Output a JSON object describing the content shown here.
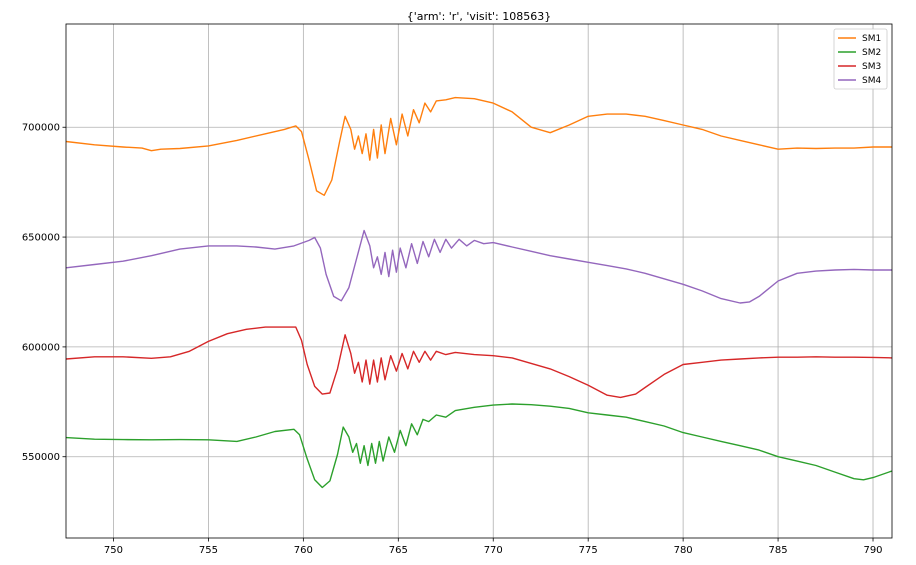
{
  "chart_data": {
    "type": "line",
    "title": "{'arm': 'r', 'visit': 108563}",
    "xlabel": "",
    "ylabel": "",
    "xlim": [
      747.5,
      791.0
    ],
    "ylim": [
      513000,
      747000
    ],
    "x_ticks": [
      750,
      755,
      760,
      765,
      770,
      775,
      780,
      785,
      790
    ],
    "y_ticks": [
      550000,
      600000,
      650000,
      700000
    ],
    "x_tick_labels": [
      "750",
      "755",
      "760",
      "765",
      "770",
      "775",
      "780",
      "785",
      "790"
    ],
    "y_tick_labels": [
      "550000",
      "600000",
      "650000",
      "700000"
    ],
    "grid": true,
    "legend_position": "top-right",
    "series": [
      {
        "name": "SM1",
        "color": "#ff7f0e",
        "points": [
          [
            747.5,
            693500
          ],
          [
            749,
            692000
          ],
          [
            750.5,
            691000
          ],
          [
            751.5,
            690500
          ],
          [
            752,
            689300
          ],
          [
            752.5,
            690000
          ],
          [
            753.5,
            690300
          ],
          [
            755,
            691500
          ],
          [
            756.5,
            694000
          ],
          [
            758,
            697000
          ],
          [
            759,
            699000
          ],
          [
            759.6,
            700600
          ],
          [
            759.9,
            698000
          ],
          [
            760.3,
            685000
          ],
          [
            760.7,
            671000
          ],
          [
            761.1,
            669000
          ],
          [
            761.5,
            676000
          ],
          [
            761.9,
            693000
          ],
          [
            762.2,
            705000
          ],
          [
            762.5,
            699000
          ],
          [
            762.7,
            690000
          ],
          [
            762.9,
            696000
          ],
          [
            763.1,
            688000
          ],
          [
            763.3,
            697000
          ],
          [
            763.5,
            685000
          ],
          [
            763.7,
            699000
          ],
          [
            763.9,
            686000
          ],
          [
            764.1,
            701000
          ],
          [
            764.3,
            688000
          ],
          [
            764.6,
            704000
          ],
          [
            764.9,
            692000
          ],
          [
            765.2,
            706000
          ],
          [
            765.5,
            696000
          ],
          [
            765.8,
            708000
          ],
          [
            766.1,
            702000
          ],
          [
            766.4,
            711000
          ],
          [
            766.7,
            707000
          ],
          [
            767.0,
            712000
          ],
          [
            767.5,
            712500
          ],
          [
            768,
            713500
          ],
          [
            769,
            713000
          ],
          [
            770,
            711000
          ],
          [
            771,
            707000
          ],
          [
            772,
            700000
          ],
          [
            773,
            697500
          ],
          [
            774,
            701000
          ],
          [
            775,
            705000
          ],
          [
            776,
            706000
          ],
          [
            777,
            706000
          ],
          [
            778,
            705000
          ],
          [
            779,
            703000
          ],
          [
            780,
            701000
          ],
          [
            781,
            699000
          ],
          [
            782,
            696000
          ],
          [
            783,
            694000
          ],
          [
            784,
            692000
          ],
          [
            785,
            690000
          ],
          [
            786,
            690500
          ],
          [
            787,
            690300
          ],
          [
            788,
            690500
          ],
          [
            789,
            690500
          ],
          [
            790,
            691000
          ],
          [
            791,
            691000
          ]
        ]
      },
      {
        "name": "SM2",
        "color": "#2ca02c",
        "points": [
          [
            747.5,
            558700
          ],
          [
            749,
            558000
          ],
          [
            750.5,
            557800
          ],
          [
            752,
            557700
          ],
          [
            753.5,
            557800
          ],
          [
            755,
            557700
          ],
          [
            756.5,
            557000
          ],
          [
            757.5,
            559000
          ],
          [
            758.5,
            561500
          ],
          [
            759.5,
            562500
          ],
          [
            759.8,
            560000
          ],
          [
            760.2,
            549000
          ],
          [
            760.6,
            539500
          ],
          [
            761.0,
            536000
          ],
          [
            761.4,
            539000
          ],
          [
            761.8,
            551000
          ],
          [
            762.1,
            563500
          ],
          [
            762.4,
            559000
          ],
          [
            762.6,
            552000
          ],
          [
            762.8,
            556000
          ],
          [
            763.0,
            547000
          ],
          [
            763.2,
            555000
          ],
          [
            763.4,
            546000
          ],
          [
            763.6,
            556000
          ],
          [
            763.8,
            547000
          ],
          [
            764.0,
            557000
          ],
          [
            764.2,
            548000
          ],
          [
            764.5,
            559000
          ],
          [
            764.8,
            552000
          ],
          [
            765.1,
            562000
          ],
          [
            765.4,
            555000
          ],
          [
            765.7,
            565000
          ],
          [
            766.0,
            560000
          ],
          [
            766.3,
            567000
          ],
          [
            766.6,
            566000
          ],
          [
            767.0,
            569000
          ],
          [
            767.5,
            568000
          ],
          [
            768,
            571000
          ],
          [
            769,
            572500
          ],
          [
            770,
            573500
          ],
          [
            771,
            574000
          ],
          [
            772,
            573700
          ],
          [
            773,
            573000
          ],
          [
            774,
            572000
          ],
          [
            775,
            570000
          ],
          [
            776,
            569000
          ],
          [
            777,
            568000
          ],
          [
            778,
            566000
          ],
          [
            779,
            564000
          ],
          [
            780,
            561000
          ],
          [
            781,
            559000
          ],
          [
            782,
            557000
          ],
          [
            783,
            555000
          ],
          [
            784,
            553000
          ],
          [
            785,
            550000
          ],
          [
            786,
            548000
          ],
          [
            787,
            546000
          ],
          [
            788,
            543000
          ],
          [
            789,
            540000
          ],
          [
            789.5,
            539500
          ],
          [
            790,
            540500
          ],
          [
            791,
            543500
          ]
        ]
      },
      {
        "name": "SM3",
        "color": "#d62728",
        "points": [
          [
            747.5,
            594500
          ],
          [
            749,
            595500
          ],
          [
            750.5,
            595500
          ],
          [
            752,
            594800
          ],
          [
            753,
            595500
          ],
          [
            754,
            598000
          ],
          [
            755,
            602500
          ],
          [
            756,
            606000
          ],
          [
            757,
            608000
          ],
          [
            758,
            609000
          ],
          [
            759,
            609000
          ],
          [
            759.6,
            609000
          ],
          [
            759.9,
            603000
          ],
          [
            760.2,
            592000
          ],
          [
            760.6,
            582000
          ],
          [
            761.0,
            578500
          ],
          [
            761.4,
            579000
          ],
          [
            761.8,
            590000
          ],
          [
            762.2,
            605500
          ],
          [
            762.5,
            597000
          ],
          [
            762.7,
            588000
          ],
          [
            762.9,
            593000
          ],
          [
            763.1,
            584000
          ],
          [
            763.3,
            594000
          ],
          [
            763.5,
            583000
          ],
          [
            763.7,
            594000
          ],
          [
            763.9,
            584000
          ],
          [
            764.1,
            595000
          ],
          [
            764.3,
            585000
          ],
          [
            764.6,
            596000
          ],
          [
            764.9,
            589000
          ],
          [
            765.2,
            597000
          ],
          [
            765.5,
            590000
          ],
          [
            765.8,
            598000
          ],
          [
            766.1,
            593000
          ],
          [
            766.4,
            598000
          ],
          [
            766.7,
            594000
          ],
          [
            767.0,
            598000
          ],
          [
            767.5,
            596500
          ],
          [
            768,
            597500
          ],
          [
            769,
            596500
          ],
          [
            770,
            596000
          ],
          [
            771,
            595000
          ],
          [
            772,
            592500
          ],
          [
            773,
            590000
          ],
          [
            774,
            586500
          ],
          [
            775,
            582500
          ],
          [
            776,
            578000
          ],
          [
            776.7,
            577000
          ],
          [
            777.5,
            578500
          ],
          [
            778,
            581500
          ],
          [
            779,
            587500
          ],
          [
            780,
            592000
          ],
          [
            781,
            593000
          ],
          [
            782,
            594000
          ],
          [
            783,
            594500
          ],
          [
            784,
            595000
          ],
          [
            785,
            595300
          ],
          [
            786,
            595300
          ],
          [
            787,
            595500
          ],
          [
            788,
            595300
          ],
          [
            789,
            595300
          ],
          [
            790,
            595200
          ],
          [
            791,
            595000
          ]
        ]
      },
      {
        "name": "SM4",
        "color": "#9467bd",
        "points": [
          [
            747.5,
            636000
          ],
          [
            749,
            637500
          ],
          [
            750.5,
            639000
          ],
          [
            752,
            641500
          ],
          [
            753.5,
            644500
          ],
          [
            755,
            646000
          ],
          [
            756.5,
            646000
          ],
          [
            757.5,
            645500
          ],
          [
            758.5,
            644500
          ],
          [
            759.5,
            646000
          ],
          [
            760.3,
            648500
          ],
          [
            760.6,
            649800
          ],
          [
            760.9,
            645000
          ],
          [
            761.2,
            633000
          ],
          [
            761.6,
            623000
          ],
          [
            762.0,
            621000
          ],
          [
            762.4,
            627000
          ],
          [
            762.8,
            640000
          ],
          [
            763.2,
            653000
          ],
          [
            763.5,
            646000
          ],
          [
            763.7,
            636000
          ],
          [
            763.9,
            641000
          ],
          [
            764.1,
            633000
          ],
          [
            764.3,
            643000
          ],
          [
            764.5,
            632000
          ],
          [
            764.7,
            644000
          ],
          [
            764.9,
            634000
          ],
          [
            765.1,
            645000
          ],
          [
            765.4,
            636000
          ],
          [
            765.7,
            647000
          ],
          [
            766.0,
            638000
          ],
          [
            766.3,
            648000
          ],
          [
            766.6,
            641000
          ],
          [
            766.9,
            649000
          ],
          [
            767.2,
            643000
          ],
          [
            767.5,
            649000
          ],
          [
            767.8,
            645000
          ],
          [
            768.2,
            649000
          ],
          [
            768.6,
            646000
          ],
          [
            769,
            648500
          ],
          [
            769.5,
            647000
          ],
          [
            770,
            647500
          ],
          [
            771,
            645500
          ],
          [
            772,
            643500
          ],
          [
            773,
            641500
          ],
          [
            774,
            640000
          ],
          [
            775,
            638500
          ],
          [
            776,
            637000
          ],
          [
            777,
            635500
          ],
          [
            778,
            633500
          ],
          [
            779,
            631000
          ],
          [
            780,
            628500
          ],
          [
            781,
            625500
          ],
          [
            782,
            622000
          ],
          [
            783,
            620000
          ],
          [
            783.5,
            620500
          ],
          [
            784,
            623000
          ],
          [
            785,
            630000
          ],
          [
            786,
            633500
          ],
          [
            787,
            634500
          ],
          [
            788,
            635000
          ],
          [
            789,
            635300
          ],
          [
            790,
            635000
          ],
          [
            791,
            635000
          ]
        ]
      }
    ]
  }
}
